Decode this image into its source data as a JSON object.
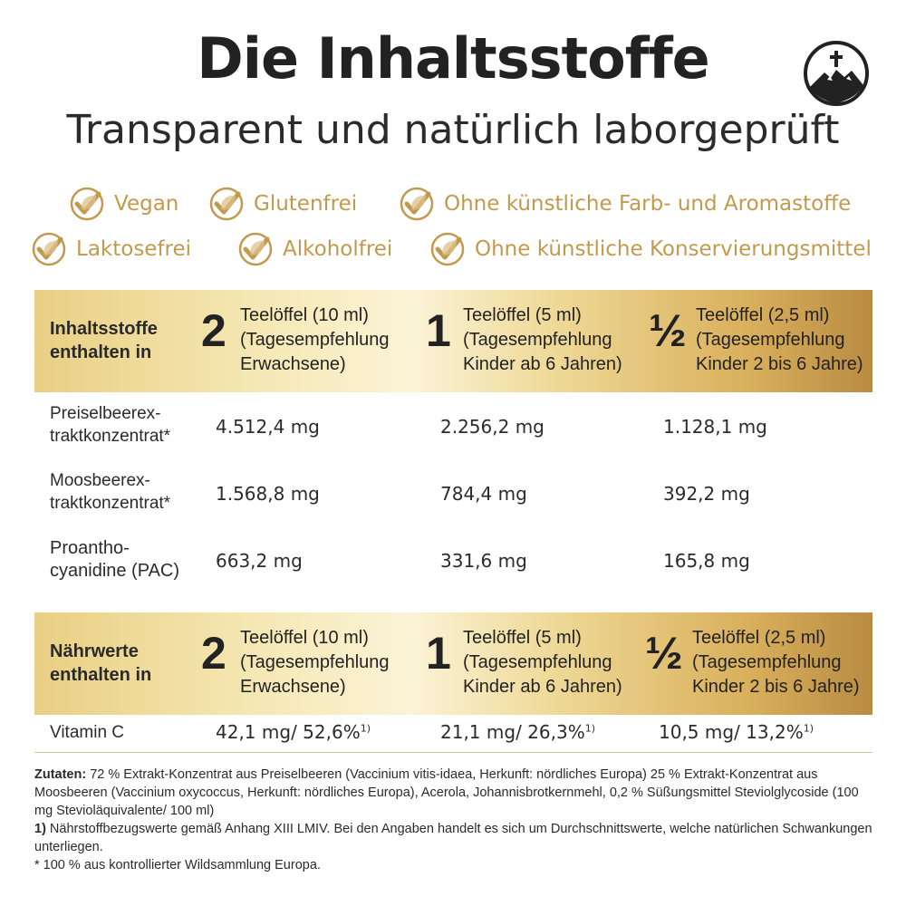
{
  "header": {
    "title": "Die Inhaltsstoffe",
    "subtitle": "Transparent und natürlich laborgeprüft",
    "logo_icon": "mountain-cross-icon"
  },
  "badges": [
    {
      "label": "Vegan",
      "icon": "leaf-check-icon"
    },
    {
      "label": "Glutenfrei",
      "icon": "leaf-check-icon"
    },
    {
      "label": "Ohne künstliche Farb- und Aromastoffe",
      "icon": "leaf-check-icon"
    },
    {
      "label": "Laktosefrei",
      "icon": "leaf-check-icon"
    },
    {
      "label": "Alkoholfrei",
      "icon": "leaf-check-icon"
    },
    {
      "label": "Ohne künstliche Konservierungsmittel",
      "icon": "leaf-check-icon"
    }
  ],
  "ingredients_table": {
    "label": "Inhaltsstoffe\nenthalten in",
    "columns": [
      {
        "amount": "2",
        "text": "Teelöffel (10 ml)\n(Tagesempfehlung\nErwachsene)"
      },
      {
        "amount": "1",
        "text": "Teelöffel (5 ml)\n(Tagesempfehlung\nKinder ab 6 Jahren)"
      },
      {
        "amount": "½",
        "text": "Teelöffel (2,5 ml)\n(Tagesempfehlung\nKinder 2 bis 6 Jahre)"
      }
    ],
    "rows": [
      {
        "name": "Preiselbeerex-\ntraktkonzentrat*",
        "values": [
          "4.512,4 mg",
          "2.256,2 mg",
          "1.128,1 mg"
        ]
      },
      {
        "name": "Moosbeerex-\ntraktkonzentrat*",
        "values": [
          "1.568,8 mg",
          "784,4 mg",
          "392,2 mg"
        ]
      },
      {
        "name": "Proantho-\ncyanidine (PAC)",
        "values": [
          "663,2 mg",
          "331,6 mg",
          "165,8 mg"
        ]
      }
    ]
  },
  "nutrition_table": {
    "label": "Nährwerte\nenthalten in",
    "columns": [
      {
        "amount": "2",
        "text": "Teelöffel (10 ml)\n(Tagesempfehlung\nErwachsene)"
      },
      {
        "amount": "1",
        "text": "Teelöffel (5 ml)\n(Tagesempfehlung\nKinder ab 6 Jahren)"
      },
      {
        "amount": "½",
        "text": "Teelöffel (2,5 ml)\n(Tagesempfehlung\nKinder 2 bis 6 Jahre)"
      }
    ],
    "rows": [
      {
        "name": "Vitamin C",
        "values": [
          "42,1 mg/ 52,6%",
          "21,1 mg/ 26,3%",
          "10,5 mg/ 13,2%"
        ],
        "footnote_mark": "1)"
      }
    ]
  },
  "footer": {
    "zutaten_label": "Zutaten:",
    "zutaten_text": " 72 % Extrakt-Konzentrat aus Preiselbeeren (Vaccinium vitis-idaea, Herkunft: nördliches Europa) 25 % Extrakt-Konzentrat aus Moosbeeren (Vaccinium oxycoccus, Herkunft: nördliches Europa), Acerola, Johannisbrotkernmehl, 0,2 % Süßungsmittel Steviolglycoside (100 mg Stevioläquivalente/ 100 ml)",
    "note1_label": "1)",
    "note1_text": " Nährstoffbezugswerte gemäß Anhang XIII LMIV. Bei den Angaben handelt es sich um Durchschnittswerte, welche natürlichen Schwankungen unterliegen.",
    "note2_text": "* 100 % aus kontrollierter Wildsammlung Europa."
  },
  "colors": {
    "gold": "#c29a4e",
    "band_light": "#fbf3d6",
    "band_dark": "#b98c42"
  }
}
